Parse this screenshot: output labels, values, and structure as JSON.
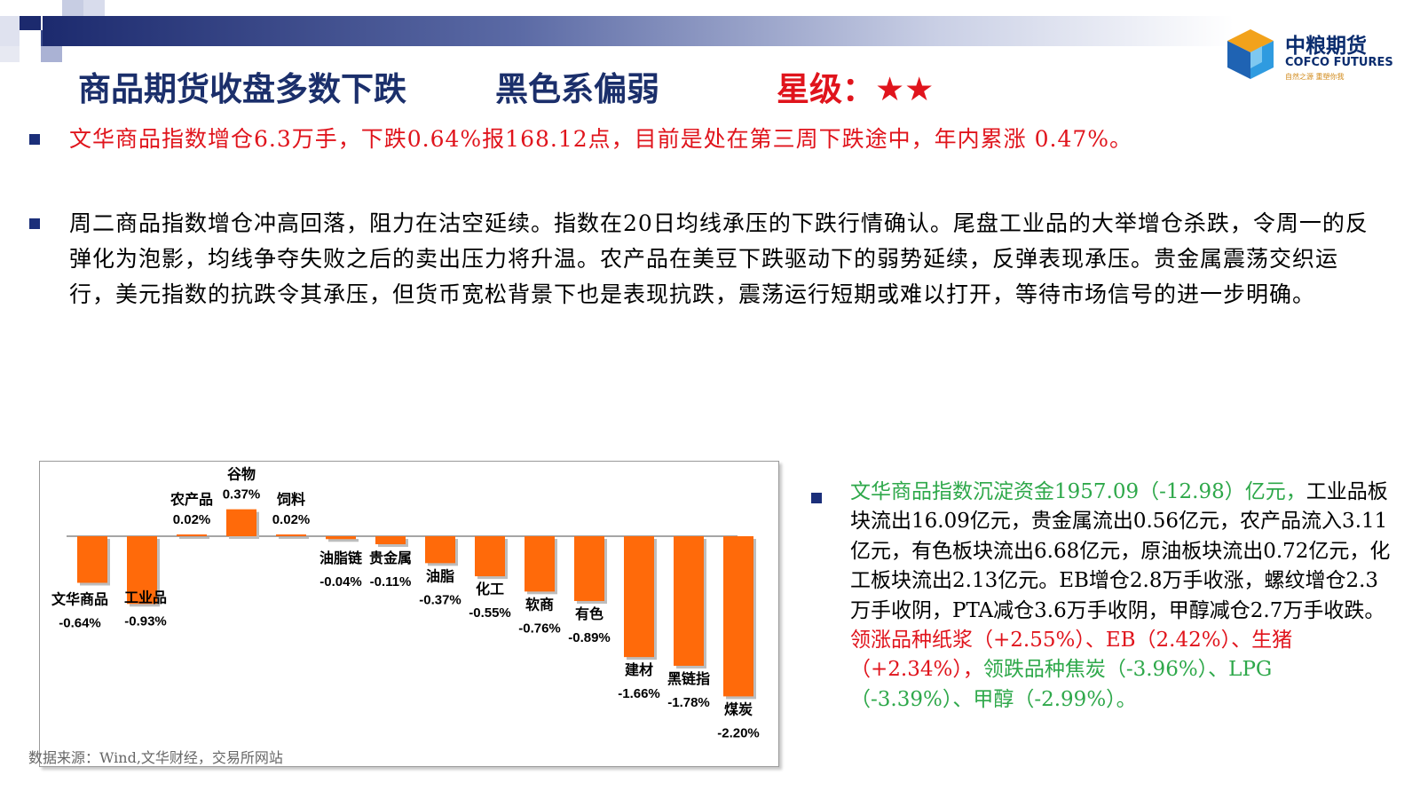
{
  "header": {
    "title": "商品期货收盘多数下跌",
    "subtitle": "黑色系偏弱",
    "rating": "星级：★★"
  },
  "logo": {
    "name_cn": "中粮期货",
    "name_en": "COFCO FUTURES",
    "slogan": "自然之源  重塑你我"
  },
  "bullets": {
    "summary": "文华商品指数增仓6.3万手，下跌0.64%报168.12点，目前是处在第三周下跌途中，年内累涨 0.47%。",
    "analysis": "周二商品指数增仓冲高回落，阻力在沽空延续。指数在20日均线承压的下跌行情确认。尾盘工业品的大举增仓杀跌，令周一的反弹化为泡影，均线争夺失败之后的卖出压力将升温。农产品在美豆下跌驱动下的弱势延续，反弹表现承压。贵金属震荡交织运行，美元指数的抗跌令其承压，但货币宽松背景下也是表现抗跌，震荡运行短期或难以打开，等待市场信号的进一步明确。"
  },
  "flow": {
    "lead": "文华商品指数沉淀资金1957.09（-12.98）亿元，",
    "body": "工业品板块流出16.09亿元，贵金属流出0.56亿元，农产品流入3.11亿元，有色板块流出6.68亿元，原油板块流出0.72亿元，化工板块流出2.13亿元。EB增仓2.8万手收涨，螺纹增仓2.3万手收阴，PTA减仓3.6万手收阴，甲醇减仓2.7万手收跌。",
    "gainers": "领涨品种纸浆（+2.55%）、EB（2.42%）、生猪（+2.34%），",
    "losers": "领跌品种焦炭（-3.96%）、LPG（-3.39%）、甲醇（-2.99%）。"
  },
  "source": "数据来源：Wind,文华财经，交易所网站",
  "colors": {
    "bar": "#ff6a0a",
    "title": "#1b2f6b",
    "accent_red": "#e0141c",
    "accent_green": "#2ea84a",
    "bullet": "#1b2f7a"
  },
  "chart_data": {
    "type": "bar",
    "categories": [
      "文华商品",
      "工业品",
      "农产品",
      "谷物",
      "饲料",
      "油脂链",
      "贵金属",
      "油脂",
      "化工",
      "软商",
      "有色",
      "建材",
      "黑链指",
      "煤炭"
    ],
    "values": [
      -0.64,
      -0.93,
      0.02,
      0.37,
      0.02,
      -0.04,
      -0.11,
      -0.37,
      -0.55,
      -0.76,
      -0.89,
      -1.66,
      -1.78,
      -2.2
    ],
    "value_labels": [
      "-0.64%",
      "-0.93%",
      "0.02%",
      "0.37%",
      "0.02%",
      "-0.04%",
      "-0.11%",
      "-0.37%",
      "-0.55%",
      "-0.76%",
      "-0.89%",
      "-1.66%",
      "-1.78%",
      "-2.20%"
    ],
    "unit": "%",
    "title": "",
    "grid": false,
    "legend": "none"
  }
}
